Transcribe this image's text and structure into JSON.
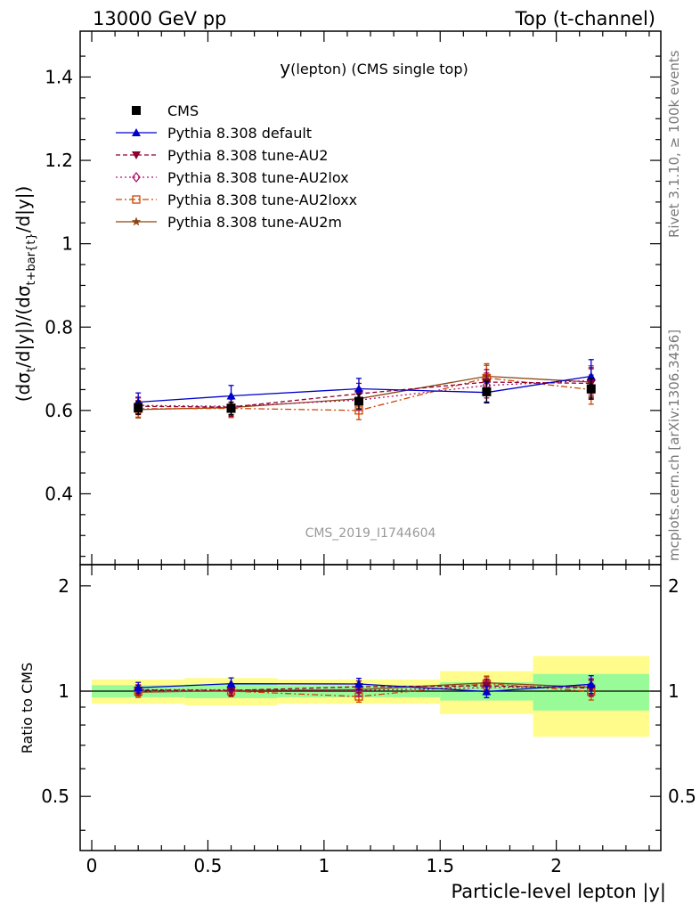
{
  "header": {
    "left": "13000 GeV pp",
    "right": "Top (t-channel)"
  },
  "side_labels": {
    "rivet": "Rivet 3.1.10, ≥ 100k events",
    "mcplots": "mcplots.cern.ch [arXiv:1306.3436]"
  },
  "watermark": "CMS_2019_I1744604",
  "colors": {
    "ratio_band_inner": "#98fb98",
    "ratio_band_outer": "#fffc8c",
    "watermark": "#999999",
    "side_label": "#777777"
  },
  "chart_data": [
    {
      "type": "line",
      "panel": "main",
      "title_main": "y",
      "title_sub": "(lepton) (CMS single top)",
      "ylabel": "(dσ_t/d|y|)/(dσ_{t+bar{t}}/d|y|)",
      "xlim": [
        -0.05,
        2.45
      ],
      "ylim": [
        0.23,
        1.51
      ],
      "yticks": [
        0.4,
        0.6,
        0.8,
        1.0,
        1.2,
        1.4
      ],
      "ytick_labels": [
        "0.4",
        "0.6",
        "0.8",
        "1",
        "1.2",
        "1.4"
      ],
      "x": [
        0.2,
        0.6,
        1.15,
        1.7,
        2.15
      ],
      "legend_position": "top-left",
      "series": [
        {
          "name": "CMS",
          "values": [
            0.606,
            0.605,
            0.622,
            0.645,
            0.652
          ],
          "errors": [
            0.015,
            0.015,
            0.018,
            0.025,
            0.025
          ],
          "color": "#000000",
          "marker": "square",
          "style": "none"
        },
        {
          "name": "Pythia 8.308 default",
          "values": [
            0.62,
            0.635,
            0.652,
            0.643,
            0.682
          ],
          "errors": [
            0.022,
            0.025,
            0.025,
            0.025,
            0.04
          ],
          "color": "#0000cc",
          "marker": "triangle-up",
          "style": "solid"
        },
        {
          "name": "Pythia 8.308 tune-AU2",
          "values": [
            0.61,
            0.608,
            0.64,
            0.668,
            0.665
          ],
          "errors": [
            0.02,
            0.022,
            0.025,
            0.03,
            0.035
          ],
          "color": "#8b0030",
          "marker": "triangle-down",
          "style": "dashed"
        },
        {
          "name": "Pythia 8.308 tune-AU2lox",
          "values": [
            0.612,
            0.61,
            0.625,
            0.66,
            0.672
          ],
          "errors": [
            0.02,
            0.022,
            0.025,
            0.03,
            0.035
          ],
          "color": "#b0106a",
          "marker": "diamond",
          "style": "dotted"
        },
        {
          "name": "Pythia 8.308 tune-AU2loxx",
          "values": [
            0.604,
            0.605,
            0.6,
            0.678,
            0.65
          ],
          "errors": [
            0.02,
            0.022,
            0.022,
            0.03,
            0.035
          ],
          "color": "#cc4400",
          "marker": "square-open",
          "style": "dashdot"
        },
        {
          "name": "Pythia 8.308 tune-AU2m",
          "values": [
            0.602,
            0.607,
            0.628,
            0.682,
            0.668
          ],
          "errors": [
            0.02,
            0.022,
            0.025,
            0.03,
            0.035
          ],
          "color": "#8b4513",
          "marker": "star",
          "style": "solid"
        }
      ]
    },
    {
      "type": "line",
      "panel": "ratio",
      "xlabel": "Particle-level lepton |y|",
      "ylabel": "Ratio to CMS",
      "xlim": [
        -0.05,
        2.45
      ],
      "ylim": [
        0.35,
        2.3
      ],
      "yticks": [
        0.5,
        1,
        2
      ],
      "ytick_labels": [
        "0.5",
        "1",
        "2"
      ],
      "xticks": [
        0,
        0.5,
        1,
        1.5,
        2
      ],
      "xtick_labels": [
        "0",
        "0.5",
        "1",
        "1.5",
        "2"
      ],
      "x": [
        0.2,
        0.6,
        1.15,
        1.7,
        2.15
      ],
      "bins": [
        [
          0.0,
          0.4
        ],
        [
          0.4,
          0.8
        ],
        [
          0.8,
          1.5
        ],
        [
          1.5,
          1.9
        ],
        [
          1.9,
          2.4
        ]
      ],
      "band_inner": [
        [
          0.96,
          1.04
        ],
        [
          0.955,
          1.045
        ],
        [
          0.96,
          1.04
        ],
        [
          0.94,
          1.06
        ],
        [
          0.88,
          1.12
        ]
      ],
      "band_outer": [
        [
          0.92,
          1.08
        ],
        [
          0.91,
          1.09
        ],
        [
          0.92,
          1.08
        ],
        [
          0.86,
          1.14
        ],
        [
          0.74,
          1.26
        ]
      ],
      "series": [
        {
          "name": "Pythia 8.308 default",
          "values": [
            1.023,
            1.05,
            1.048,
            0.997,
            1.046
          ],
          "errors": [
            0.036,
            0.041,
            0.04,
            0.039,
            0.061
          ]
        },
        {
          "name": "Pythia 8.308 tune-AU2",
          "values": [
            1.007,
            1.005,
            1.029,
            1.036,
            1.02
          ],
          "errors": [
            0.033,
            0.036,
            0.04,
            0.047,
            0.054
          ]
        },
        {
          "name": "Pythia 8.308 tune-AU2lox",
          "values": [
            1.01,
            1.008,
            1.005,
            1.023,
            1.031
          ],
          "errors": [
            0.033,
            0.036,
            0.04,
            0.047,
            0.054
          ]
        },
        {
          "name": "Pythia 8.308 tune-AU2loxx",
          "values": [
            0.997,
            1.0,
            0.965,
            1.051,
            0.997
          ],
          "errors": [
            0.033,
            0.036,
            0.035,
            0.047,
            0.054
          ]
        },
        {
          "name": "Pythia 8.308 tune-AU2m",
          "values": [
            0.993,
            1.003,
            1.01,
            1.057,
            1.025
          ],
          "errors": [
            0.033,
            0.036,
            0.04,
            0.047,
            0.054
          ]
        }
      ]
    }
  ]
}
